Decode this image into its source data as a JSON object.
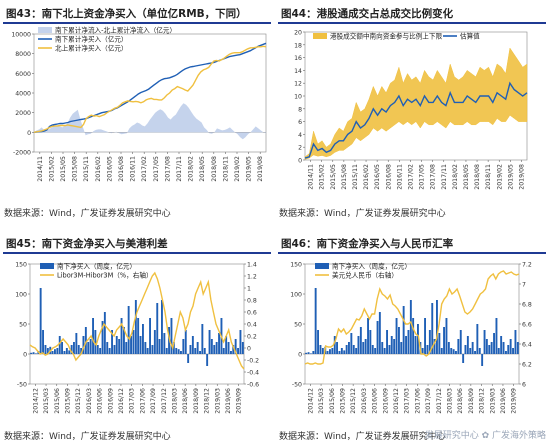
{
  "panels": {
    "p43": {
      "title": "图43：南下北上资金净买入（单位亿RMB，下同）",
      "source": "数据来源：Wind，广发证券发展研究中心"
    },
    "p44": {
      "title": "图44：港股通成交占总成交比例变化",
      "source": "数据来源：Wind，广发证券发展研究中心"
    },
    "p45": {
      "title": "图45：南下资金净买入与美港利差",
      "source": "数据来源：Wind，广发证券发展研究中心"
    },
    "p46": {
      "title": "图46：南下资金净买入与人民币汇率",
      "source": "数据来源：Wind，广发证券发展研究中心"
    }
  },
  "watermark": "发展研究中心 ✿ 广发海外策略",
  "chart_data": [
    {
      "id": "p43",
      "type": "area",
      "legend_position": "top-left",
      "ylim": [
        -2000,
        10000
      ],
      "yticks": [
        -2000,
        0,
        2000,
        4000,
        6000,
        8000,
        10000
      ],
      "xticks": [
        "2014/11",
        "2015/02",
        "2015/05",
        "2015/08",
        "2015/11",
        "2016/02",
        "2016/05",
        "2016/08",
        "2016/11",
        "2017/02",
        "2017/05",
        "2017/08",
        "2017/11",
        "2018/02",
        "2018/05",
        "2018/08",
        "2018/11",
        "2019/02",
        "2019/05",
        "2019/08"
      ],
      "series": [
        {
          "name": "南下累计净流入-北上累计净流入（亿元）",
          "kind": "area",
          "color": "#c5d3ec",
          "values": [
            0,
            200,
            300,
            500,
            200,
            100,
            350,
            500,
            600,
            700,
            600,
            500,
            700,
            900,
            1500,
            1900,
            2100,
            2300,
            1300,
            500,
            -300,
            -200,
            -150,
            100,
            250,
            300,
            300,
            200,
            100,
            0,
            -100,
            0,
            50,
            -100,
            -200,
            -150,
            -100,
            400,
            650,
            800,
            1000,
            900,
            700,
            600,
            900,
            1300,
            1650,
            2000,
            2200,
            2350,
            2200,
            1900,
            1500,
            1300,
            1600,
            1800,
            2250,
            2650,
            2950,
            2800,
            2500,
            2100,
            1700,
            1400,
            1200,
            1000,
            500,
            250,
            -100,
            -150,
            0,
            400,
            300,
            200,
            250,
            350,
            500,
            250,
            0,
            -200,
            -500,
            -700,
            -500,
            -200,
            0,
            300,
            600,
            400,
            200,
            0,
            -100
          ]
        },
        {
          "name": "南下累计净买入（亿元）",
          "kind": "line",
          "color": "#1f5fb5",
          "values": [
            0,
            30,
            60,
            80,
            150,
            250,
            600,
            750,
            800,
            850,
            900,
            900,
            950,
            1000,
            1100,
            1150,
            1200,
            1250,
            1300,
            1350,
            1400,
            1500,
            1600,
            1700,
            1800,
            1900,
            2000,
            2050,
            2100,
            2150,
            2250,
            2400,
            2500,
            2650,
            2800,
            2950,
            3100,
            3300,
            3500,
            3700,
            3900,
            4050,
            4150,
            4250,
            4400,
            4600,
            4800,
            5000,
            5200,
            5350,
            5450,
            5500,
            5550,
            5650,
            5750,
            5900,
            6100,
            6300,
            6450,
            6550,
            6650,
            6700,
            6750,
            6800,
            6850,
            6900,
            6950,
            7000,
            7050,
            7100,
            7200,
            7300,
            7400,
            7500,
            7600,
            7700,
            7750,
            7800,
            7850,
            7900,
            8000,
            8100,
            8200,
            8300,
            8450,
            8600,
            8750,
            8850,
            8950,
            9050
          ]
        },
        {
          "name": "北上累计净买入（亿元）",
          "kind": "line",
          "color": "#f0c040",
          "values": [
            0,
            50,
            100,
            150,
            250,
            350,
            500,
            600,
            650,
            650,
            700,
            700,
            700,
            750,
            700,
            650,
            600,
            550,
            500,
            800,
            1400,
            1600,
            1750,
            1650,
            1700,
            1600,
            1700,
            1800,
            2000,
            2150,
            2300,
            2450,
            2550,
            2750,
            3000,
            3100,
            3200,
            3150,
            3100,
            3150,
            3100,
            3000,
            3100,
            3300,
            3400,
            3450,
            3350,
            3350,
            3300,
            3300,
            3500,
            3800,
            4000,
            4300,
            4450,
            4650,
            4550,
            4450,
            4300,
            4200,
            4500,
            4800,
            5300,
            5800,
            6150,
            6350,
            6450,
            6600,
            6950,
            7250,
            7300,
            7250,
            7400,
            7550,
            7750,
            7950,
            8050,
            8100,
            8100,
            8100,
            8200,
            8350,
            8500,
            8600,
            8600,
            8650,
            8700,
            8700,
            8750,
            8700
          ]
        }
      ]
    },
    {
      "id": "p44",
      "type": "line",
      "legend_position": "top",
      "ylim": [
        0,
        20
      ],
      "yticks": [
        0,
        2,
        4,
        6,
        8,
        10,
        12,
        14,
        16,
        18,
        20
      ],
      "xticks": [
        "2014/11",
        "2015/02",
        "2015/05",
        "2015/08",
        "2015/11",
        "2016/02",
        "2016/05",
        "2016/08",
        "2016/11",
        "2017/02",
        "2017/05",
        "2017/08",
        "2017/11",
        "2018/02",
        "2018/05",
        "2018/08",
        "2018/11",
        "2019/02",
        "2019/05",
        "2019/08"
      ],
      "series": [
        {
          "name": "港股成交额中南向资金参与比例上下限",
          "kind": "band",
          "color": "#f0c040",
          "upper": [
            0.5,
            1.0,
            4.5,
            2.5,
            3.0,
            2.0,
            2.5,
            4.0,
            5.0,
            4.5,
            6.0,
            6.5,
            9.0,
            7.5,
            8.0,
            9.5,
            11.5,
            10.0,
            11.5,
            10.5,
            12.0,
            12.5,
            14.5,
            12.0,
            13.5,
            12.5,
            13.0,
            12.0,
            14.0,
            13.0,
            12.5,
            14.0,
            13.0,
            12.0,
            15.0,
            13.0,
            12.5,
            13.0,
            14.0,
            13.5,
            13.0,
            14.5,
            14.0,
            14.5,
            13.0,
            15.0,
            14.5,
            13.5,
            17.5,
            16.5,
            15.5,
            14.5,
            15.0
          ],
          "lower": [
            0.1,
            0.3,
            0.8,
            0.6,
            0.7,
            0.5,
            0.7,
            1.2,
            1.5,
            1.5,
            2.0,
            2.5,
            3.5,
            3.0,
            3.5,
            4.0,
            5.0,
            4.5,
            5.0,
            4.5,
            5.0,
            5.5,
            6.0,
            5.5,
            6.0,
            5.5,
            6.0,
            5.0,
            6.0,
            5.5,
            5.5,
            6.0,
            5.5,
            5.0,
            6.0,
            5.5,
            5.5,
            5.5,
            6.0,
            5.5,
            5.5,
            6.0,
            6.0,
            6.0,
            5.5,
            6.5,
            6.0,
            6.0,
            7.0,
            6.5,
            6.0,
            6.0,
            6.0
          ]
        },
        {
          "name": "估算值",
          "kind": "line",
          "color": "#1f5fb5",
          "values": [
            0.3,
            0.5,
            2.5,
            1.5,
            1.8,
            1.2,
            1.5,
            2.5,
            3.0,
            3.0,
            4.0,
            4.5,
            6.0,
            5.0,
            5.5,
            6.5,
            8.0,
            7.0,
            8.0,
            7.5,
            8.5,
            9.0,
            10.0,
            8.5,
            9.5,
            9.0,
            9.5,
            8.5,
            10.0,
            9.0,
            9.0,
            10.0,
            9.0,
            8.5,
            10.5,
            9.0,
            9.0,
            9.0,
            10.0,
            9.5,
            9.0,
            10.0,
            10.0,
            10.0,
            9.0,
            10.5,
            10.0,
            9.5,
            12.0,
            11.0,
            10.5,
            10.0,
            10.5
          ]
        }
      ]
    },
    {
      "id": "p45",
      "type": "bar",
      "legend_position": "top-left",
      "ylim": [
        -50,
        150
      ],
      "yticks": [
        -50,
        0,
        50,
        100,
        150
      ],
      "y2lim": [
        -0.6,
        1.4
      ],
      "y2ticks": [
        -0.6,
        -0.4,
        -0.2,
        0,
        0.2,
        0.4,
        0.6,
        0.8,
        1,
        1.2,
        1.4
      ],
      "xticks": [
        "2014/12",
        "2015/03",
        "2015/06",
        "2015/09",
        "2015/12",
        "2016/03",
        "2016/06",
        "2016/09",
        "2016/12",
        "2017/03",
        "2017/06",
        "2017/09",
        "2017/12",
        "2018/03",
        "2018/06",
        "2018/09",
        "2018/12",
        "2019/03",
        "2019/06",
        "2019/09"
      ],
      "series": [
        {
          "name": "南下净买入（周度，亿元）",
          "kind": "bar",
          "color": "#1f5fb5",
          "values": [
            2,
            3,
            1,
            5,
            110,
            40,
            15,
            10,
            12,
            5,
            8,
            10,
            30,
            20,
            5,
            10,
            6,
            15,
            20,
            35,
            15,
            10,
            30,
            45,
            20,
            25,
            60,
            40,
            15,
            10,
            55,
            70,
            20,
            10,
            40,
            15,
            30,
            25,
            60,
            45,
            20,
            80,
            30,
            40,
            90,
            60,
            30,
            50,
            20,
            10,
            60,
            15,
            40,
            85,
            25,
            90,
            35,
            10,
            45,
            60,
            20,
            10,
            8,
            5,
            25,
            40,
            -15,
            15,
            30,
            10,
            20,
            5,
            50,
            10,
            -20,
            40,
            25,
            15,
            20,
            35,
            60,
            10,
            30,
            20,
            5,
            15,
            25,
            10,
            40,
            20
          ]
        },
        {
          "name": "Libor3M-Hibor3M（%，右轴）",
          "kind": "line",
          "axis": "right",
          "color": "#f0c040",
          "values": [
            0.05,
            0.02,
            0.0,
            -0.05,
            -0.1,
            -0.08,
            -0.12,
            -0.1,
            -0.05,
            0.0,
            0.02,
            0.05,
            0.1,
            0.15,
            0.1,
            0.05,
            -0.05,
            -0.1,
            -0.2,
            -0.15,
            -0.1,
            0.0,
            0.1,
            0.15,
            0.2,
            0.1,
            0.05,
            0.2,
            0.3,
            0.4,
            0.35,
            0.3,
            0.25,
            0.2,
            0.3,
            0.35,
            0.4,
            0.3,
            0.2,
            0.15,
            0.25,
            0.45,
            0.6,
            0.7,
            0.8,
            0.9,
            1.0,
            1.1,
            1.2,
            1.25,
            1.15,
            1.0,
            0.8,
            0.6,
            0.3,
            0.1,
            0.0,
            0.2,
            0.4,
            0.6,
            0.5,
            0.3,
            0.4,
            0.6,
            0.7,
            0.9,
            1.0,
            1.1,
            0.9,
            1.0,
            1.1,
            0.8,
            0.6,
            0.4,
            0.3,
            0.2,
            0.1,
            0.2,
            0.3,
            0.1,
            0.0,
            -0.1,
            -0.2,
            -0.3,
            -0.35
          ]
        }
      ]
    },
    {
      "id": "p46",
      "type": "bar",
      "legend_position": "top-left",
      "ylim": [
        -50,
        150
      ],
      "yticks": [
        -50,
        0,
        50,
        100,
        150
      ],
      "y2lim": [
        6.0,
        7.2
      ],
      "y2ticks": [
        6.0,
        6.2,
        6.4,
        6.6,
        6.8,
        7.0,
        7.2
      ],
      "xticks": [
        "2014/12",
        "2015/03",
        "2015/06",
        "2015/09",
        "2015/12",
        "2016/03",
        "2016/06",
        "2016/09",
        "2016/12",
        "2017/03",
        "2017/06",
        "2017/09",
        "2017/12",
        "2018/03",
        "2018/06",
        "2018/09",
        "2018/12",
        "2019/03",
        "2019/06",
        "2019/09"
      ],
      "series": [
        {
          "name": "南下净买入（周度，亿元）",
          "kind": "bar",
          "color": "#1f5fb5",
          "values": [
            2,
            3,
            1,
            5,
            110,
            40,
            15,
            10,
            12,
            5,
            8,
            10,
            30,
            20,
            5,
            10,
            6,
            15,
            20,
            35,
            15,
            10,
            30,
            45,
            20,
            25,
            60,
            40,
            15,
            10,
            55,
            70,
            20,
            10,
            40,
            15,
            30,
            25,
            60,
            45,
            20,
            80,
            30,
            40,
            90,
            60,
            30,
            50,
            20,
            10,
            60,
            15,
            40,
            85,
            25,
            90,
            35,
            10,
            45,
            60,
            20,
            10,
            8,
            5,
            25,
            40,
            -15,
            15,
            30,
            10,
            20,
            5,
            50,
            10,
            -20,
            40,
            25,
            15,
            20,
            35,
            60,
            10,
            30,
            20,
            5,
            15,
            25,
            10,
            40,
            20
          ]
        },
        {
          "name": "美元兑人民币（右轴）",
          "kind": "line",
          "axis": "right",
          "color": "#f0c040",
          "values": [
            6.2,
            6.21,
            6.2,
            6.2,
            6.21,
            6.2,
            6.2,
            6.21,
            6.38,
            6.37,
            6.37,
            6.39,
            6.45,
            6.55,
            6.52,
            6.55,
            6.5,
            6.52,
            6.55,
            6.6,
            6.65,
            6.64,
            6.68,
            6.75,
            6.7,
            6.65,
            6.7,
            6.7,
            6.85,
            6.95,
            6.9,
            6.88,
            6.85,
            6.89,
            6.8,
            6.78,
            6.75,
            6.7,
            6.65,
            6.6,
            6.6,
            6.62,
            6.55,
            6.5,
            6.48,
            6.3,
            6.3,
            6.28,
            6.3,
            6.35,
            6.4,
            6.45,
            6.6,
            6.8,
            6.85,
            6.88,
            6.95,
            6.9,
            6.92,
            6.95,
            6.88,
            6.8,
            6.72,
            6.7,
            6.72,
            6.75,
            6.8,
            6.85,
            6.9,
            6.92,
            6.95,
            7.05,
            7.08,
            7.1,
            7.05,
            7.1,
            7.12,
            7.13,
            7.1,
            7.11,
            7.12,
            7.1,
            7.09,
            7.1
          ]
        }
      ]
    }
  ]
}
